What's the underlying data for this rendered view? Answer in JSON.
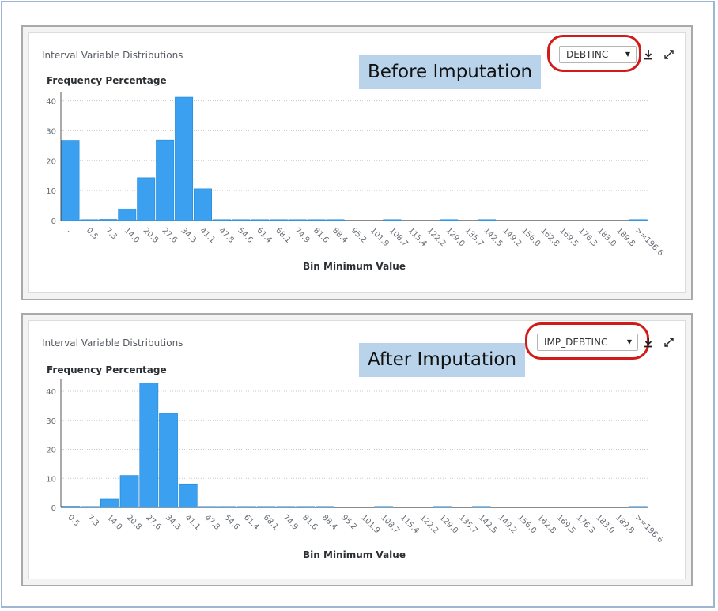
{
  "panels": [
    {
      "title": "Interval Variable Distributions",
      "annotation": "Before Imputation",
      "variable": "DEBTINC",
      "chart_data": {
        "type": "bar",
        "ylabel": "Frequency Percentage",
        "xlabel": "Bin Minimum Value",
        "ylim": [
          0,
          42
        ],
        "yticks": [
          0,
          10,
          20,
          30,
          40
        ],
        "grid": true,
        "categories": [
          ".",
          "0.5",
          "7.3",
          "14.0",
          "20.8",
          "27.6",
          "34.3",
          "41.1",
          "47.8",
          "54.6",
          "61.4",
          "68.1",
          "74.9",
          "81.6",
          "88.4",
          "95.2",
          "101.9",
          "108.7",
          "115.4",
          "122.2",
          "129.0",
          "135.7",
          "142.5",
          "149.2",
          "156.0",
          "162.8",
          "169.5",
          "176.3",
          "183.0",
          "189.8",
          ">=196.6"
        ],
        "values": [
          26.8,
          0.3,
          0.4,
          3.9,
          14.3,
          26.9,
          41.2,
          10.6,
          0.1,
          0.1,
          0.1,
          0.1,
          0.1,
          0.1,
          0.1,
          0,
          0,
          0.1,
          0,
          0,
          0.1,
          0,
          0.1,
          0,
          0,
          0,
          0,
          0,
          0,
          0,
          0.1
        ],
        "color": "#3ba0f0"
      }
    },
    {
      "title": "Interval Variable Distributions",
      "annotation": "After Imputation",
      "variable": "IMP_DEBTINC",
      "chart_data": {
        "type": "bar",
        "ylabel": "Frequency Percentage",
        "xlabel": "Bin Minimum Value",
        "ylim": [
          0,
          43
        ],
        "yticks": [
          0,
          10,
          20,
          30,
          40
        ],
        "grid": true,
        "categories": [
          "0.5",
          "7.3",
          "14.0",
          "20.8",
          "27.6",
          "34.3",
          "41.1",
          "47.8",
          "54.6",
          "61.4",
          "68.1",
          "74.9",
          "81.6",
          "88.4",
          "95.2",
          "101.9",
          "108.7",
          "115.4",
          "122.2",
          "129.0",
          "135.7",
          "142.5",
          "149.2",
          "156.0",
          "162.8",
          "169.5",
          "176.3",
          "183.0",
          "189.8",
          ">=196.6"
        ],
        "values": [
          0.4,
          0.3,
          3.0,
          11.0,
          42.8,
          32.4,
          8.1,
          0.1,
          0.1,
          0.1,
          0.1,
          0.1,
          0.1,
          0.1,
          0,
          0,
          0.1,
          0,
          0,
          0.1,
          0,
          0.1,
          0,
          0,
          0,
          0,
          0,
          0,
          0,
          0.1
        ],
        "color": "#3ba0f0"
      }
    }
  ]
}
